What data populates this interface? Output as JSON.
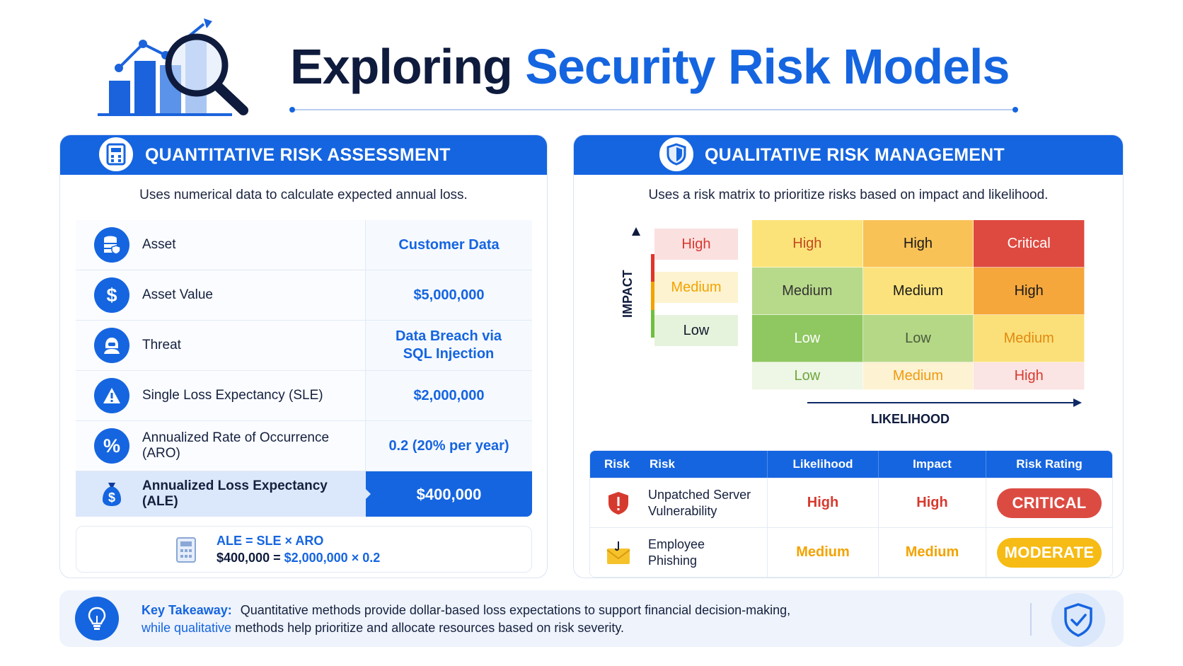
{
  "title": {
    "part1": "Exploring",
    "part2": "Security Risk Models"
  },
  "quant": {
    "header": "QUANTITATIVE RISK ASSESSMENT",
    "subtitle": "Uses numerical data to calculate expected annual loss.",
    "rows": [
      {
        "label": "Asset",
        "value": "Customer Data",
        "icon": "database-shield-icon"
      },
      {
        "label": "Asset Value",
        "value": "$5,000,000",
        "icon": "dollar-icon"
      },
      {
        "label": "Threat",
        "value": "Data Breach via SQL Injection",
        "icon": "hacker-icon"
      },
      {
        "label": "Single Loss Expectancy (SLE)",
        "value": "$2,000,000",
        "icon": "warning-icon"
      },
      {
        "label": "Annualized Rate of Occurrence (ARO)",
        "value": "0.2 (20% per year)",
        "icon": "percent-icon"
      },
      {
        "label": "Annualized Loss Expectancy (ALE)",
        "value": "$400,000",
        "icon": "money-bag-icon"
      }
    ],
    "formula": {
      "line1": "ALE = SLE × ARO",
      "line2_a": "$400,000 =",
      "line2_b": "$2,000,000 × 0.2"
    }
  },
  "qual": {
    "header": "QUALITATIVE RISK MANAGEMENT",
    "subtitle": "Uses a risk matrix to prioritize risks based on impact and likelihood.",
    "matrix": {
      "impact_label": "IMPACT",
      "likelihood_label": "LIKELIHOOD",
      "impact_levels": [
        {
          "label": "High",
          "color": "#d63a2f",
          "bg": "#fbe0e0"
        },
        {
          "label": "Medium",
          "color": "#f3a300",
          "bg": "#fdf3d0"
        },
        {
          "label": "Low",
          "color": "#111a2e",
          "bg": "#e6f3dc"
        }
      ],
      "cells": [
        {
          "label": "High",
          "bg": "#fbe37a",
          "color": "#c44a1f"
        },
        {
          "label": "High",
          "bg": "#f9c257",
          "color": "#1a1a1a"
        },
        {
          "label": "Critical",
          "bg": "#de4a40",
          "color": "#ffffff"
        },
        {
          "label": "Medium",
          "bg": "#b7d98a",
          "color": "#333333"
        },
        {
          "label": "Medium",
          "bg": "#fbe27c",
          "color": "#1a1a1a"
        },
        {
          "label": "High",
          "bg": "#f5a73c",
          "color": "#1a1a1a"
        },
        {
          "label": "Low",
          "bg": "#8fc761",
          "color": "#ffffff"
        },
        {
          "label": "Low",
          "bg": "#b5d887",
          "color": "#4a5b3a"
        },
        {
          "label": "Medium",
          "bg": "#fbe07a",
          "color": "#e08a10"
        },
        {
          "label": "Low",
          "bg": "#eef6e6",
          "color": "#6ea63a"
        },
        {
          "label": "Medium",
          "bg": "#fdf2d2",
          "color": "#f09a10"
        },
        {
          "label": "High",
          "bg": "#fbe4e4",
          "color": "#d63a2f"
        }
      ]
    },
    "table": {
      "headers": {
        "risk_a": "Risk",
        "risk_b": "Risk",
        "likelihood": "Likelihood",
        "impact": "Impact",
        "rating": "Risk Rating"
      },
      "rows": [
        {
          "name": "Unpatched Server Vulnerability",
          "icon": "shield-alert-icon",
          "likelihood": "High",
          "impact": "High",
          "rating": "CRITICAL",
          "value_color": "#d63a2f",
          "badge_color": "#dc4b42"
        },
        {
          "name": "Employee Phishing",
          "icon": "phishing-envelope-icon",
          "likelihood": "Medium",
          "impact": "Medium",
          "rating": "MODERATE",
          "value_color": "#f3a300",
          "badge_color": "#f6bb14"
        }
      ]
    }
  },
  "takeaway": {
    "label": "Key Takeaway:",
    "text1": "Quantitative methods provide dollar-based loss expectations to support financial decision-making,",
    "blue": "while qualitative",
    "text2": "methods help prioritize and allocate resources based on risk severity."
  }
}
